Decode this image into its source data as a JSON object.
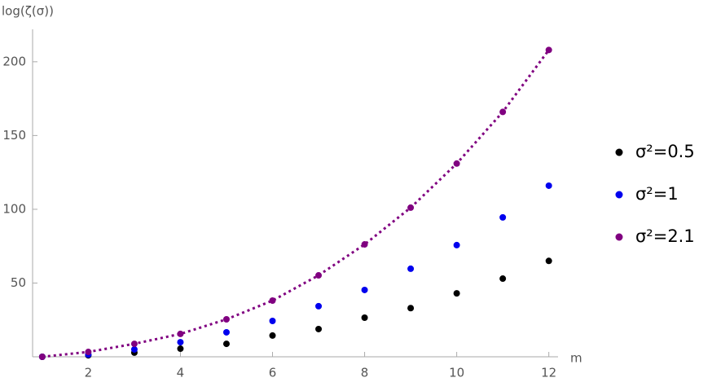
{
  "chart_data": {
    "type": "scatter",
    "y_label": "log(ζ(σ))",
    "x_label": "m",
    "x": [
      1,
      2,
      3,
      4,
      5,
      6,
      7,
      8,
      9,
      10,
      11,
      12
    ],
    "series": [
      {
        "name": "σ²=0.5",
        "color": "#000000",
        "values": [
          0,
          1,
          2.8,
          5.5,
          8.8,
          14.4,
          18.8,
          26.5,
          33,
          43,
          53,
          65
        ]
      },
      {
        "name": "σ²=1",
        "color": "#0000ee",
        "values": [
          0,
          1.5,
          5,
          9.9,
          16.6,
          24.3,
          34.3,
          45.3,
          59.7,
          75.7,
          94.5,
          116
        ]
      },
      {
        "name": "σ²=2.1",
        "color": "#800080",
        "values": [
          0,
          3.3,
          8.8,
          15.5,
          25.4,
          38.1,
          55.2,
          76.2,
          101.1,
          131,
          166,
          208
        ],
        "line": "dotted"
      }
    ],
    "xlim": [
      0.79,
      12.2
    ],
    "ylim": [
      0,
      222
    ],
    "xticks": [
      2,
      4,
      6,
      8,
      10,
      12
    ],
    "yticks": [
      50,
      100,
      150,
      200
    ],
    "legend": "right"
  }
}
